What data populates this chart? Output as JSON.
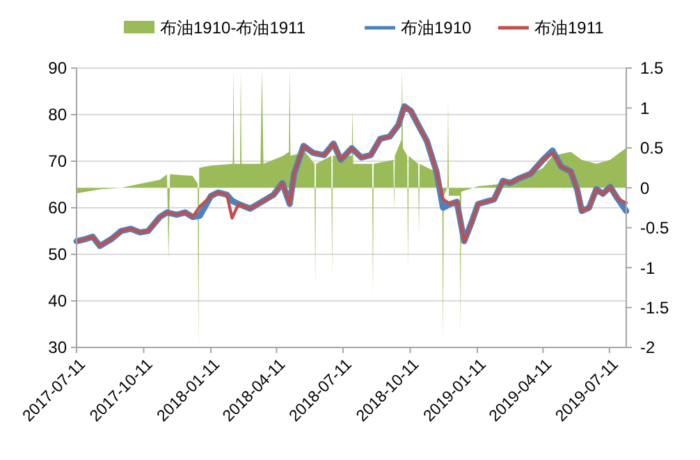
{
  "chart_data": {
    "type": "line",
    "xlim": [
      "2017-07-11",
      "2019-08-03"
    ],
    "xticks": [
      "2017-07-11",
      "2017-10-11",
      "2018-01-11",
      "2018-04-11",
      "2018-07-11",
      "2018-10-11",
      "2019-01-11",
      "2019-04-11",
      "2019-07-11"
    ],
    "ylim": [
      30,
      90
    ],
    "yticks": [
      30,
      40,
      50,
      60,
      70,
      80,
      90
    ],
    "y2lim": [
      -2,
      1.5
    ],
    "y2ticks": [
      -2,
      -1.5,
      -1,
      -0.5,
      0,
      0.5,
      1,
      1.5
    ],
    "grid": "y",
    "legend": "top",
    "series": [
      {
        "name": "布油1910-布油1911",
        "type": "area",
        "axis": "y2",
        "color": "#9bbb59",
        "x": [
          "2017-07-11",
          "2017-08-12",
          "2017-09-10",
          "2017-10-06",
          "2017-11-02",
          "2017-11-12",
          "2017-11-14",
          "2017-11-16",
          "2017-12-17",
          "2017-12-24",
          "2017-12-25",
          "2017-12-26",
          "2018-01-11",
          "2018-02-10",
          "2018-02-11",
          "2018-02-12",
          "2018-02-20",
          "2018-02-21",
          "2018-02-22",
          "2018-03-20",
          "2018-03-22",
          "2018-03-24",
          "2018-04-20",
          "2018-04-28",
          "2018-04-29",
          "2018-04-30",
          "2018-05-20",
          "2018-06-02",
          "2018-06-03",
          "2018-06-04",
          "2018-06-25",
          "2018-06-26",
          "2018-06-27",
          "2018-07-23",
          "2018-07-24",
          "2018-07-25",
          "2018-08-20",
          "2018-08-21",
          "2018-08-22",
          "2018-09-18",
          "2018-09-19",
          "2018-09-20",
          "2018-09-29",
          "2018-09-30",
          "2018-10-01",
          "2018-10-07",
          "2018-10-08",
          "2018-10-09",
          "2018-10-22",
          "2018-10-23",
          "2018-10-24",
          "2018-11-15",
          "2018-11-20",
          "2018-11-24",
          "2018-11-25",
          "2018-11-26",
          "2018-12-01",
          "2018-12-02",
          "2018-12-03",
          "2018-12-18",
          "2018-12-19",
          "2018-12-20",
          "2019-01-12",
          "2019-02-15",
          "2019-03-09",
          "2019-04-11",
          "2019-04-24",
          "2019-05-19",
          "2019-06-03",
          "2019-06-23",
          "2019-07-12",
          "2019-08-03"
        ],
        "values": [
          -0.07,
          -0.02,
          0,
          0.05,
          0.1,
          0.17,
          -0.9,
          0.17,
          0.15,
          0.05,
          -2,
          0.25,
          0.28,
          0.3,
          1.5,
          0.3,
          0.3,
          1.5,
          0.3,
          0.3,
          1.5,
          0.3,
          0.4,
          0.45,
          1.5,
          0.4,
          0.45,
          0.3,
          -1.2,
          0.3,
          0.4,
          -1.1,
          0.4,
          0.4,
          1.0,
          0.3,
          0.3,
          -1.35,
          0.3,
          0.35,
          -0.3,
          0.4,
          0.6,
          1.5,
          0.5,
          0.4,
          -1.0,
          0.4,
          0.3,
          -0.6,
          0.3,
          0.2,
          -0.1,
          -0.1,
          -1.95,
          -0.1,
          0,
          1.1,
          -0.1,
          -0.1,
          -1.8,
          -0.05,
          0.02,
          0.05,
          0.08,
          0.25,
          0.4,
          0.45,
          0.35,
          0.3,
          0.35,
          0.5
        ]
      },
      {
        "name": "布油1910",
        "color": "#4f81bd",
        "x": [
          "2017-07-11",
          "2017-07-24",
          "2017-08-02",
          "2017-08-12",
          "2017-08-28",
          "2017-09-10",
          "2017-09-23",
          "2017-10-06",
          "2017-10-17",
          "2017-11-02",
          "2017-11-12",
          "2017-11-25",
          "2017-12-07",
          "2017-12-17",
          "2017-12-27",
          "2018-01-11",
          "2018-01-21",
          "2018-02-02",
          "2018-02-09",
          "2018-02-18",
          "2018-03-06",
          "2018-03-22",
          "2018-04-07",
          "2018-04-19",
          "2018-04-29",
          "2018-05-05",
          "2018-05-18",
          "2018-05-31",
          "2018-06-15",
          "2018-06-28",
          "2018-07-08",
          "2018-07-23",
          "2018-08-05",
          "2018-08-18",
          "2018-08-31",
          "2018-09-13",
          "2018-09-25",
          "2018-10-03",
          "2018-10-12",
          "2018-10-22",
          "2018-11-03",
          "2018-11-16",
          "2018-11-25",
          "2018-12-05",
          "2018-12-14",
          "2018-12-24",
          "2019-01-03",
          "2019-01-12",
          "2019-01-23",
          "2019-02-03",
          "2019-02-15",
          "2019-02-25",
          "2019-03-09",
          "2019-03-25",
          "2019-04-11",
          "2019-04-24",
          "2019-05-06",
          "2019-05-19",
          "2019-05-28",
          "2019-06-03",
          "2019-06-13",
          "2019-06-23",
          "2019-07-02",
          "2019-07-12",
          "2019-07-22",
          "2019-08-03"
        ],
        "values": [
          52.8,
          53.3,
          53.8,
          51.8,
          53.3,
          55,
          55.5,
          54.7,
          55,
          58,
          59,
          58.5,
          59,
          58,
          58.3,
          62.5,
          63.3,
          62.8,
          61.5,
          60.8,
          59.8,
          61.3,
          62.8,
          65.3,
          60.8,
          67.3,
          73.3,
          71.8,
          71.3,
          73.8,
          70.3,
          72.8,
          70.8,
          71.3,
          74.8,
          75.3,
          77.8,
          81.8,
          80.8,
          77.8,
          74.3,
          67.8,
          60,
          60.8,
          61.3,
          52.8,
          56.8,
          60.8,
          61.3,
          61.8,
          65.8,
          65.3,
          66.3,
          67.3,
          70.3,
          72.3,
          68.8,
          67.8,
          63.8,
          59.3,
          60,
          64,
          63,
          64.5,
          62,
          59.3
        ]
      },
      {
        "name": "布油1911",
        "color": "#c0504d",
        "x": [
          "2017-07-11",
          "2017-07-24",
          "2017-08-02",
          "2017-08-12",
          "2017-08-28",
          "2017-09-10",
          "2017-09-23",
          "2017-10-06",
          "2017-10-17",
          "2017-11-02",
          "2017-11-12",
          "2017-11-25",
          "2017-12-07",
          "2017-12-17",
          "2017-12-27",
          "2018-01-11",
          "2018-01-21",
          "2018-02-02",
          "2018-02-09",
          "2018-02-18",
          "2018-03-06",
          "2018-03-22",
          "2018-04-07",
          "2018-04-19",
          "2018-04-29",
          "2018-05-05",
          "2018-05-18",
          "2018-05-31",
          "2018-06-15",
          "2018-06-28",
          "2018-07-08",
          "2018-07-23",
          "2018-08-05",
          "2018-08-18",
          "2018-08-31",
          "2018-09-13",
          "2018-09-25",
          "2018-10-03",
          "2018-10-12",
          "2018-10-22",
          "2018-11-03",
          "2018-11-16",
          "2018-11-25",
          "2018-12-05",
          "2018-12-14",
          "2018-12-24",
          "2019-01-03",
          "2019-01-12",
          "2019-01-23",
          "2019-02-03",
          "2019-02-15",
          "2019-02-25",
          "2019-03-09",
          "2019-03-25",
          "2019-04-11",
          "2019-04-24",
          "2019-05-06",
          "2019-05-19",
          "2019-05-28",
          "2019-06-03",
          "2019-06-13",
          "2019-06-23",
          "2019-07-02",
          "2019-07-12",
          "2019-07-22",
          "2019-08-03"
        ],
        "values": [
          52.8,
          53.3,
          53.8,
          51.8,
          53.3,
          55,
          55.5,
          54.7,
          55,
          58,
          59,
          58.5,
          59,
          58,
          60.3,
          62.5,
          63.3,
          62.8,
          57.8,
          60.8,
          59.8,
          61.3,
          62.8,
          65.3,
          60.8,
          67.3,
          73.3,
          71.8,
          71.3,
          73.8,
          70.3,
          72.8,
          70.8,
          71.3,
          74.8,
          75.3,
          77.8,
          81.8,
          80.8,
          77.8,
          74.3,
          67.8,
          61.8,
          60.8,
          61.3,
          52.8,
          56.8,
          60.8,
          61.3,
          61.8,
          65.8,
          65.3,
          66.3,
          67.3,
          70.3,
          71.8,
          68.8,
          67.8,
          63.8,
          59.3,
          60,
          64,
          63,
          64.5,
          62,
          61
        ]
      }
    ]
  }
}
